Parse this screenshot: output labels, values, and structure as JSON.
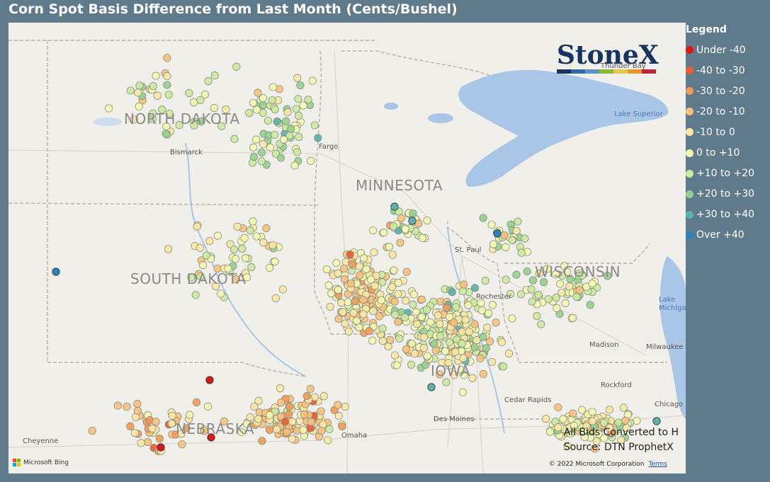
{
  "title": "Corn Spot Basis Difference from Last Month (Cents/Bushel)",
  "logo": {
    "text": "StoneX",
    "bar_colors": [
      "#17335f",
      "#2c6aa0",
      "#5b93c7",
      "#8db53c",
      "#e4c84c",
      "#e49a2e",
      "#b8283a"
    ]
  },
  "legend": {
    "title": "Legend",
    "items": [
      {
        "label": "Under -40",
        "color": "#d7191c"
      },
      {
        "label": "-40 to -30",
        "color": "#eb5b36"
      },
      {
        "label": "-30 to -20",
        "color": "#f59a59"
      },
      {
        "label": "-20 to -10",
        "color": "#fdc07d"
      },
      {
        "label": "-10 to 0",
        "color": "#ffe6a5"
      },
      {
        "label": "0 to +10",
        "color": "#f5f9b2"
      },
      {
        "label": "+10 to +20",
        "color": "#cde8a0"
      },
      {
        "label": "+20 to +30",
        "color": "#97cf8f"
      },
      {
        "label": "+30 to +40",
        "color": "#5fb0ab"
      },
      {
        "label": "Over +40",
        "color": "#2b83ba"
      }
    ]
  },
  "map": {
    "states": [
      "NORTH DAKOTA",
      "SOUTH DAKOTA",
      "MINNESOTA",
      "WISCONSIN",
      "NEBRASKA",
      "IOWA"
    ],
    "cities": [
      "Bismarck",
      "Fargo",
      "St. Paul",
      "Rochester",
      "Madison",
      "Milwaukee",
      "Rockford",
      "Chicago",
      "Cedar Rapids",
      "Des Moines",
      "Omaha",
      "Cheyenne",
      "Thunder Bay"
    ],
    "lakes": [
      "Lake Superior",
      "Lake Michigan"
    ],
    "water_color": "#aac6e6",
    "land_color": "#f1efe9"
  },
  "notes": {
    "line1": "All Bids Converted to H",
    "line2": "Source: DTN ProphetX"
  },
  "attribution": {
    "bing": "Microsoft Bing",
    "copyright": "© 2022 Microsoft Corporation",
    "terms": "Terms"
  }
}
